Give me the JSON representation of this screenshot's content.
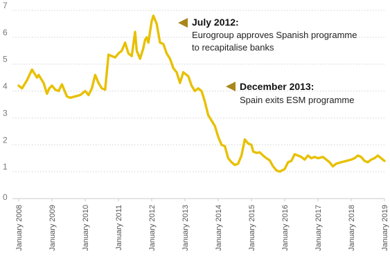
{
  "chart_data": {
    "type": "line",
    "title": "",
    "xlabel": "",
    "ylabel": "",
    "ylim": [
      0,
      7
    ],
    "yticks": [
      0,
      1,
      2,
      3,
      4,
      5,
      6,
      7
    ],
    "xlim": [
      2008.0,
      2019.0
    ],
    "xticks": [
      2008,
      2009,
      2010,
      2011,
      2012,
      2013,
      2014,
      2015,
      2016,
      2017,
      2018,
      2019
    ],
    "xtick_labels": [
      "January 2008",
      "January 2009",
      "January 2010",
      "January 2011",
      "January 2012",
      "January 2013",
      "January 2014",
      "January 2015",
      "January 2016",
      "January 2017",
      "January 2018",
      "January 2019"
    ],
    "grid": true,
    "line_color": "#e8c000",
    "annotation_color": "#a8861a",
    "series": [
      {
        "x": [
          2008.0,
          2008.1,
          2008.25,
          2008.4,
          2008.45,
          2008.55,
          2008.6,
          2008.75,
          2008.85,
          2008.92,
          2009.0,
          2009.1,
          2009.2,
          2009.3,
          2009.45,
          2009.55,
          2009.7,
          2009.85,
          2010.0,
          2010.1,
          2010.2,
          2010.3,
          2010.4,
          2010.5,
          2010.6,
          2010.7,
          2010.8,
          2010.9,
          2011.0,
          2011.1,
          2011.2,
          2011.3,
          2011.4,
          2011.5,
          2011.55,
          2011.65,
          2011.75,
          2011.8,
          2011.85,
          2011.9,
          2012.0,
          2012.05,
          2012.15,
          2012.25,
          2012.35,
          2012.45,
          2012.55,
          2012.65,
          2012.75,
          2012.85,
          2012.95,
          2013.1,
          2013.2,
          2013.3,
          2013.4,
          2013.5,
          2013.6,
          2013.7,
          2013.8,
          2013.9,
          2014.0,
          2014.1,
          2014.2,
          2014.3,
          2014.4,
          2014.5,
          2014.6,
          2014.7,
          2014.8,
          2014.9,
          2015.0,
          2015.05,
          2015.15,
          2015.25,
          2015.35,
          2015.45,
          2015.55,
          2015.65,
          2015.75,
          2015.85,
          2016.0,
          2016.1,
          2016.2,
          2016.3,
          2016.4,
          2016.5,
          2016.6,
          2016.7,
          2016.8,
          2016.9,
          2017.0,
          2017.15,
          2017.25,
          2017.35,
          2017.45,
          2017.55,
          2017.7,
          2017.85,
          2018.0,
          2018.1,
          2018.2,
          2018.3,
          2018.4,
          2018.5,
          2018.6,
          2018.7,
          2018.8,
          2018.9,
          2019.0
        ],
        "y": [
          4.2,
          4.1,
          4.4,
          4.8,
          4.7,
          4.5,
          4.6,
          4.3,
          3.9,
          4.1,
          4.2,
          4.05,
          4.0,
          4.25,
          3.8,
          3.75,
          3.8,
          3.85,
          4.0,
          3.85,
          4.1,
          4.6,
          4.3,
          4.1,
          4.05,
          5.35,
          5.3,
          5.25,
          5.4,
          5.5,
          5.8,
          5.4,
          5.3,
          6.2,
          5.5,
          5.2,
          5.6,
          5.9,
          6.0,
          5.8,
          6.6,
          6.8,
          6.5,
          5.8,
          5.75,
          5.4,
          5.2,
          4.85,
          4.7,
          4.3,
          4.7,
          4.55,
          4.2,
          4.0,
          4.1,
          4.0,
          3.6,
          3.1,
          2.9,
          2.7,
          2.3,
          2.0,
          1.95,
          1.5,
          1.35,
          1.25,
          1.3,
          1.6,
          2.2,
          2.05,
          2.0,
          1.75,
          1.7,
          1.72,
          1.6,
          1.5,
          1.42,
          1.2,
          1.05,
          1.0,
          1.1,
          1.35,
          1.4,
          1.65,
          1.6,
          1.55,
          1.45,
          1.6,
          1.5,
          1.55,
          1.5,
          1.55,
          1.45,
          1.35,
          1.2,
          1.3,
          1.35,
          1.4,
          1.45,
          1.5,
          1.6,
          1.55,
          1.4,
          1.35,
          1.45,
          1.5,
          1.6,
          1.5,
          1.4
        ]
      }
    ],
    "annotations": [
      {
        "title": "July 2012:",
        "lines": [
          "Eurogroup approves Spanish programme",
          "to recapitalise banks"
        ]
      },
      {
        "title": "December 2013:",
        "lines": [
          "Spain exits ESM programme"
        ]
      }
    ]
  }
}
